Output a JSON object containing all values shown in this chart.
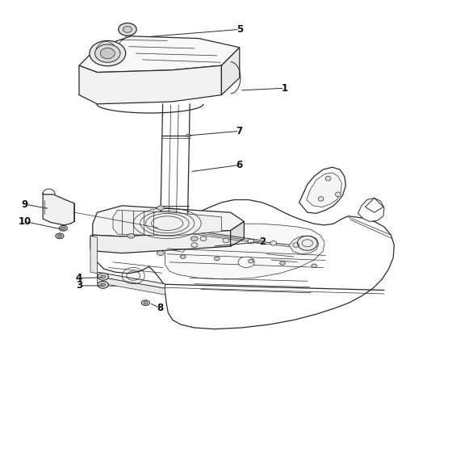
{
  "bg_color": "#ffffff",
  "line_color": "#2a2a2a",
  "label_color": "#111111",
  "font_size": 8.5,
  "lw_main": 0.9,
  "lw_thin": 0.5,
  "lw_med": 0.7,
  "parts": {
    "1": [
      0.63,
      0.805,
      0.53,
      0.8
    ],
    "2": [
      0.58,
      0.465,
      0.47,
      0.455
    ],
    "3": [
      0.175,
      0.368,
      0.23,
      0.368
    ],
    "4": [
      0.175,
      0.385,
      0.23,
      0.386
    ],
    "5": [
      0.53,
      0.935,
      0.32,
      0.918
    ],
    "6": [
      0.53,
      0.635,
      0.42,
      0.62
    ],
    "7": [
      0.53,
      0.71,
      0.415,
      0.7
    ],
    "8": [
      0.355,
      0.318,
      0.33,
      0.33
    ],
    "9": [
      0.055,
      0.548,
      0.11,
      0.538
    ],
    "10": [
      0.055,
      0.51,
      0.14,
      0.492
    ]
  }
}
